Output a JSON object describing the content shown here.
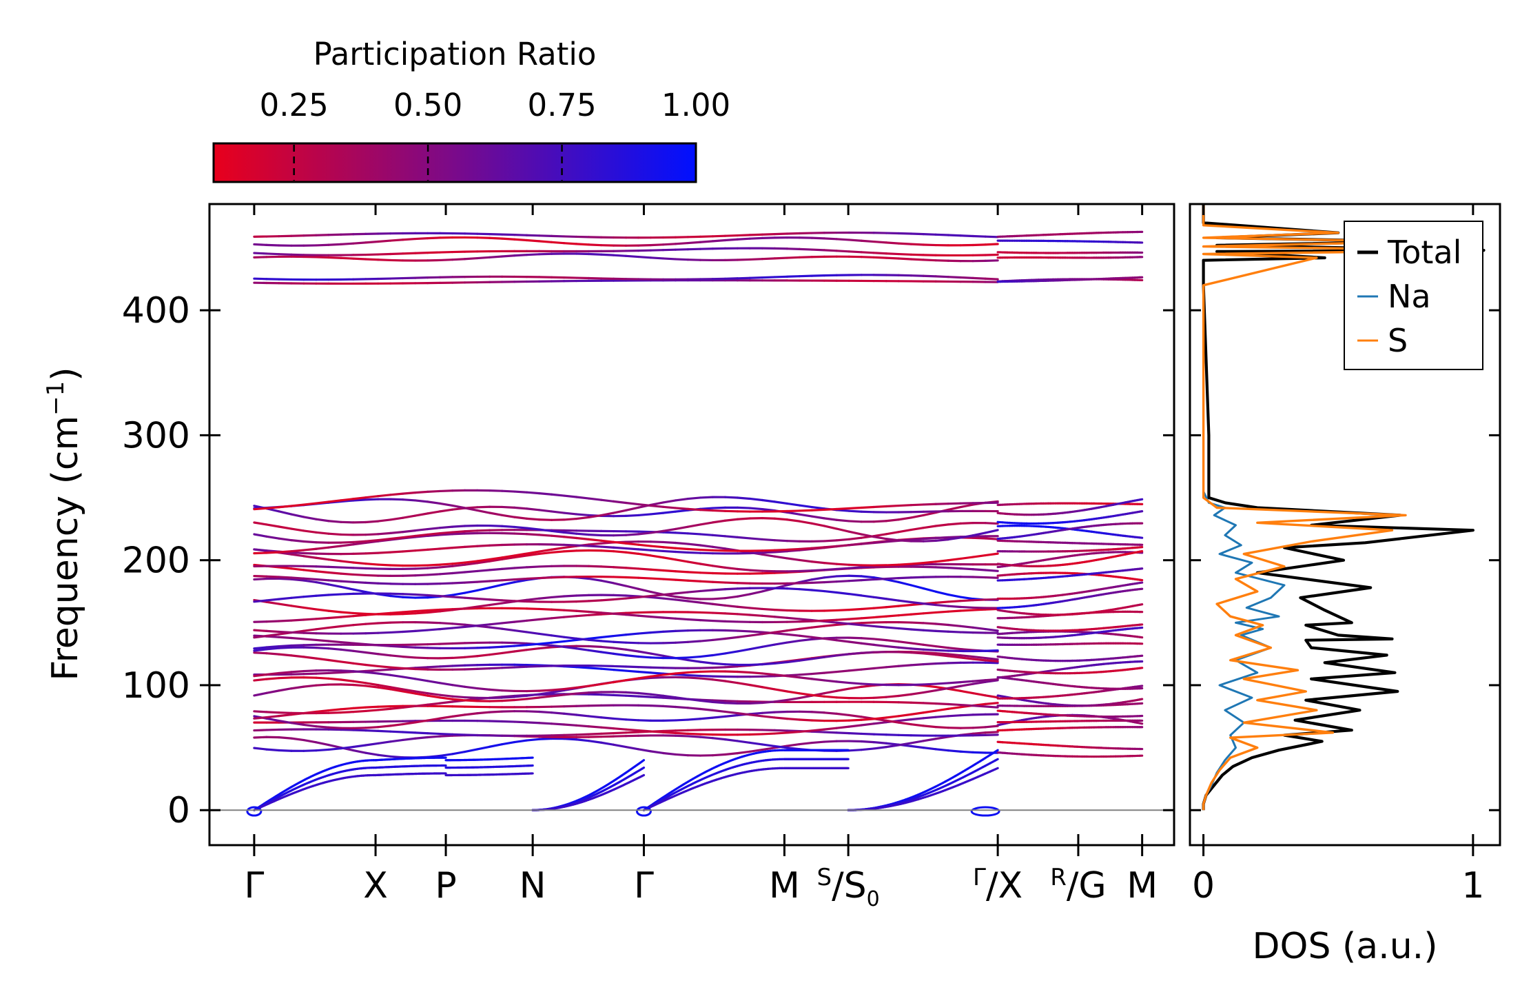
{
  "chart_data": [
    {
      "type": "line",
      "title": "",
      "xlabel": "",
      "ylabel": "Frequency (cm",
      "ylabel_sup": "−1",
      "ylabel_close": ")",
      "ylim": [
        -28,
        485
      ],
      "yticks": [
        0,
        100,
        200,
        300,
        400
      ],
      "ytick_labels": [
        "0",
        "100",
        "200",
        "300",
        "400"
      ],
      "xlim": [
        -0.35,
        7.2
      ],
      "kpoints": [
        {
          "x": 0.0,
          "main": "Γ",
          "sup": "",
          "sub": ""
        },
        {
          "x": 0.95,
          "main": "X",
          "sup": "",
          "sub": ""
        },
        {
          "x": 1.5,
          "main": "P",
          "sup": "",
          "sub": ""
        },
        {
          "x": 2.18,
          "main": "N",
          "sup": "",
          "sub": ""
        },
        {
          "x": 3.05,
          "main": "Γ",
          "sup": "",
          "sub": ""
        },
        {
          "x": 4.15,
          "main": "M",
          "sup": "",
          "sub": ""
        },
        {
          "x": 4.65,
          "main": "/S",
          "sup": "S",
          "sub": "0"
        },
        {
          "x": 5.82,
          "main": "/X",
          "sup": "Γ",
          "sub": ""
        },
        {
          "x": 6.45,
          "main": "/G",
          "sup": "R",
          "sub": ""
        },
        {
          "x": 6.95,
          "main": "M",
          "sup": "",
          "sub": ""
        }
      ],
      "segment_break": 5.82,
      "zero_line": 0,
      "acoustic_top": [
        [
          0.0,
          0
        ],
        [
          0.95,
          40
        ],
        [
          1.5,
          42
        ],
        [
          2.18,
          40
        ],
        [
          3.05,
          0
        ],
        [
          4.15,
          48
        ],
        [
          4.65,
          48
        ],
        [
          5.82,
          0
        ]
      ],
      "optical_groups": [
        {
          "name": "high",
          "base": [
            423,
            426,
            442,
            447,
            455,
            460
          ],
          "amp": 3
        },
        {
          "name": "mid-upper",
          "base": [
            178,
            184,
            192,
            198,
            205,
            210,
            214,
            221,
            225,
            238,
            242,
            246
          ],
          "amp": 9
        },
        {
          "name": "mid",
          "base": [
            112,
            118,
            124,
            130,
            136,
            142,
            150,
            156,
            165,
            170
          ],
          "amp": 8
        },
        {
          "name": "low",
          "base": [
            50,
            56,
            62,
            68,
            74,
            80,
            86,
            92,
            98,
            104
          ],
          "amp": 8
        }
      ],
      "colorbar": {
        "label": "Participation Ratio",
        "ticks": [
          0.25,
          0.5,
          0.75,
          1.0
        ],
        "tick_labels": [
          "0.25",
          "0.50",
          "0.75",
          "1.00"
        ],
        "range": [
          0.1,
          1.0
        ],
        "color_low": "#e8001c",
        "color_mid": "#7a0a8a",
        "color_high": "#0010ff"
      }
    },
    {
      "type": "line",
      "title": "",
      "xlabel": "DOS (a.u.)",
      "ylabel": "",
      "xlim": [
        -0.05,
        1.1
      ],
      "xticks": [
        0,
        1
      ],
      "xtick_labels": [
        "0",
        "1"
      ],
      "ylim": [
        -28,
        485
      ],
      "legend_position": "top-right",
      "series": [
        {
          "name": "Total",
          "color": "#000000",
          "x": [
            0,
            0,
            0.01,
            0.04,
            0.07,
            0.11,
            0.18,
            0.28,
            0.44,
            0.3,
            0.55,
            0.34,
            0.58,
            0.38,
            0.72,
            0.4,
            0.71,
            0.45,
            0.68,
            0.4,
            0.38,
            0.7,
            0.5,
            0.38,
            0.55,
            0.45,
            0.36,
            0.62,
            0.2,
            0.52,
            0.3,
            0.6,
            1.0,
            0.4,
            0.73,
            0.2,
            0.08,
            0.02,
            0.02,
            0.0,
            0.0,
            0.45,
            0.05,
            1.04,
            0.05,
            0.8,
            0.05,
            0.5,
            0.0,
            0.0
          ],
          "y": [
            0,
            5,
            12,
            20,
            28,
            35,
            42,
            48,
            55,
            60,
            64,
            72,
            80,
            88,
            95,
            105,
            110,
            118,
            124,
            130,
            136,
            137,
            140,
            148,
            150,
            160,
            170,
            178,
            190,
            200,
            210,
            214,
            224,
            228,
            236,
            242,
            246,
            250,
            300,
            420,
            440,
            442,
            447,
            448,
            452,
            455,
            458,
            462,
            470,
            485
          ]
        },
        {
          "name": "Na",
          "color": "#1f77b4",
          "x": [
            0,
            0,
            0.01,
            0.03,
            0.05,
            0.08,
            0.12,
            0.1,
            0.15,
            0.08,
            0.18,
            0.06,
            0.2,
            0.12,
            0.25,
            0.14,
            0.22,
            0.12,
            0.28,
            0.16,
            0.25,
            0.3,
            0.12,
            0.18,
            0.06,
            0.14,
            0.08,
            0.12,
            0.04,
            0.08,
            0.02,
            0.0
          ],
          "y": [
            0,
            5,
            12,
            20,
            30,
            40,
            50,
            60,
            70,
            80,
            90,
            100,
            110,
            120,
            130,
            140,
            145,
            150,
            155,
            162,
            170,
            180,
            190,
            198,
            205,
            212,
            220,
            228,
            236,
            242,
            246,
            255
          ]
        },
        {
          "name": "S",
          "color": "#ff7f0e",
          "x": [
            0,
            0,
            0.01,
            0.03,
            0.06,
            0.1,
            0.2,
            0.1,
            0.48,
            0.15,
            0.42,
            0.2,
            0.38,
            0.15,
            0.35,
            0.1,
            0.25,
            0.12,
            0.22,
            0.1,
            0.05,
            0.2,
            0.12,
            0.3,
            0.15,
            0.4,
            0.7,
            0.2,
            0.75,
            0.05,
            0.0,
            0.0,
            0.0,
            0.42,
            0.0,
            1.03,
            0.0,
            0.8,
            0.0,
            0.5,
            0.0,
            0.0
          ],
          "y": [
            0,
            5,
            12,
            22,
            32,
            42,
            50,
            58,
            62,
            70,
            80,
            88,
            95,
            105,
            112,
            120,
            130,
            140,
            148,
            155,
            165,
            175,
            185,
            195,
            205,
            215,
            224,
            230,
            236,
            242,
            250,
            300,
            420,
            442,
            445,
            448,
            451,
            455,
            458,
            462,
            468,
            485
          ]
        }
      ]
    }
  ]
}
